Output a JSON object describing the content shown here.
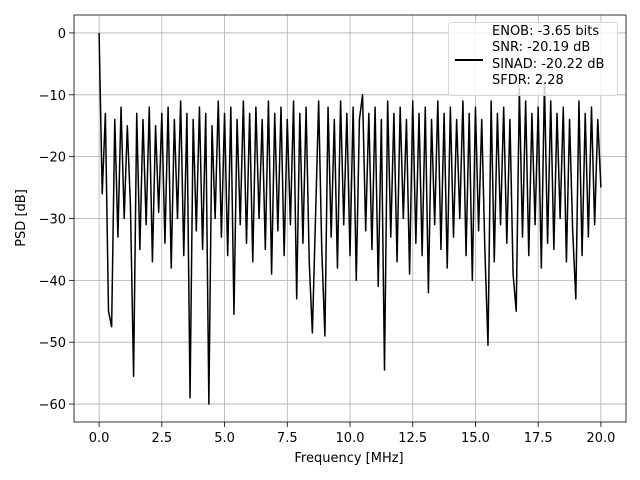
{
  "chart_data": {
    "type": "line",
    "xlabel": "Frequency [MHz]",
    "ylabel": "PSD [dB]",
    "x": [
      0,
      0.125,
      0.25,
      0.375,
      0.5,
      0.625,
      0.75,
      0.875,
      1,
      1.125,
      1.25,
      1.375,
      1.5,
      1.625,
      1.75,
      1.875,
      2,
      2.125,
      2.25,
      2.375,
      2.5,
      2.625,
      2.75,
      2.875,
      3,
      3.125,
      3.25,
      3.375,
      3.5,
      3.625,
      3.75,
      3.875,
      4,
      4.125,
      4.25,
      4.375,
      4.5,
      4.625,
      4.75,
      4.875,
      5,
      5.125,
      5.25,
      5.375,
      5.5,
      5.625,
      5.75,
      5.875,
      6,
      6.125,
      6.25,
      6.375,
      6.5,
      6.625,
      6.75,
      6.875,
      7,
      7.125,
      7.25,
      7.375,
      7.5,
      7.625,
      7.75,
      7.875,
      8,
      8.125,
      8.25,
      8.375,
      8.5,
      8.625,
      8.75,
      8.875,
      9,
      9.125,
      9.25,
      9.375,
      9.5,
      9.625,
      9.75,
      9.875,
      10,
      10.125,
      10.25,
      10.375,
      10.5,
      10.625,
      10.75,
      10.875,
      11,
      11.125,
      11.25,
      11.375,
      11.5,
      11.625,
      11.75,
      11.875,
      12,
      12.125,
      12.25,
      12.375,
      12.5,
      12.625,
      12.75,
      12.875,
      13,
      13.125,
      13.25,
      13.375,
      13.5,
      13.625,
      13.75,
      13.875,
      14,
      14.125,
      14.25,
      14.375,
      14.5,
      14.625,
      14.75,
      14.875,
      15,
      15.125,
      15.25,
      15.375,
      15.5,
      15.625,
      15.75,
      15.875,
      16,
      16.125,
      16.25,
      16.375,
      16.5,
      16.625,
      16.75,
      16.875,
      17,
      17.125,
      17.25,
      17.375,
      17.5,
      17.625,
      17.75,
      17.875,
      18,
      18.125,
      18.25,
      18.375,
      18.5,
      18.625,
      18.75,
      18.875,
      19,
      19.125,
      19.25,
      19.375,
      19.5,
      19.625,
      19.75,
      19.875,
      20
    ],
    "series": [
      {
        "name": "ENOB: -3.65 bits\nSNR: -20.19 dB\nSINAD: -20.22 dB\nSFDR: 2.28",
        "color": "#000000",
        "values": [
          0,
          -26,
          -13,
          -45,
          -47.5,
          -14,
          -33,
          -12,
          -30,
          -15,
          -28,
          -55.5,
          -13,
          -35,
          -14,
          -31,
          -12,
          -37,
          -15,
          -29,
          -13,
          -34,
          -12,
          -38,
          -14,
          -30,
          -11,
          -36,
          -13,
          -59,
          -14,
          -32,
          -12,
          -35,
          -13,
          -60,
          -15,
          -30,
          -11,
          -33,
          -13,
          -36,
          -12,
          -45.5,
          -14,
          -31,
          -11,
          -34,
          -13,
          -37,
          -12,
          -30,
          -14,
          -35,
          -11,
          -39,
          -13,
          -32,
          -12,
          -36,
          -14,
          -31,
          -11,
          -43,
          -13,
          -34,
          -12,
          -37,
          -48.5,
          -30,
          -11,
          -35,
          -49,
          -12,
          -33,
          -14,
          -38,
          -11,
          -31,
          -13,
          -36,
          -12,
          -40,
          -14,
          -10,
          -32,
          -13,
          -35,
          -12,
          -41,
          -14,
          -54.5,
          -11,
          -33,
          -13,
          -37,
          -12,
          -30,
          -14,
          -39,
          -11,
          -34,
          -13,
          -36,
          -12,
          -42,
          -14,
          -31,
          -11,
          -35,
          -13,
          -38,
          -12,
          -33,
          -14,
          -30,
          -11,
          -36,
          -13,
          -40,
          -12,
          -32,
          -14,
          -35,
          -50.5,
          -11,
          -37,
          -13,
          -31,
          -12,
          -34,
          -14,
          -39,
          -45,
          -9,
          -33,
          -11,
          -36,
          -13,
          -31,
          -12,
          -38,
          -8,
          -34,
          -11,
          -35,
          -13,
          -30,
          -12,
          -37,
          -14,
          -32,
          -43,
          -11,
          -36,
          -13,
          -33,
          -12,
          -31,
          -14,
          -25
        ]
      }
    ],
    "xlim": [
      -1,
      21
    ],
    "xticks": [
      {
        "value": 0,
        "label": "0.0"
      },
      {
        "value": 2.5,
        "label": "2.5"
      },
      {
        "value": 5,
        "label": "5.0"
      },
      {
        "value": 7.5,
        "label": "7.5"
      },
      {
        "value": 10,
        "label": "10.0"
      },
      {
        "value": 12.5,
        "label": "12.5"
      },
      {
        "value": 15,
        "label": "15.0"
      },
      {
        "value": 17.5,
        "label": "17.5"
      },
      {
        "value": 20,
        "label": "20.0"
      }
    ],
    "ylim": [
      -62.9,
      2.9
    ],
    "yticks": [
      {
        "value": -60,
        "label": "−60"
      },
      {
        "value": -50,
        "label": "−50"
      },
      {
        "value": -40,
        "label": "−40"
      },
      {
        "value": -30,
        "label": "−30"
      },
      {
        "value": -20,
        "label": "−20"
      },
      {
        "value": -10,
        "label": "−10"
      },
      0
    ],
    "grid": true,
    "legend": "upper right"
  }
}
